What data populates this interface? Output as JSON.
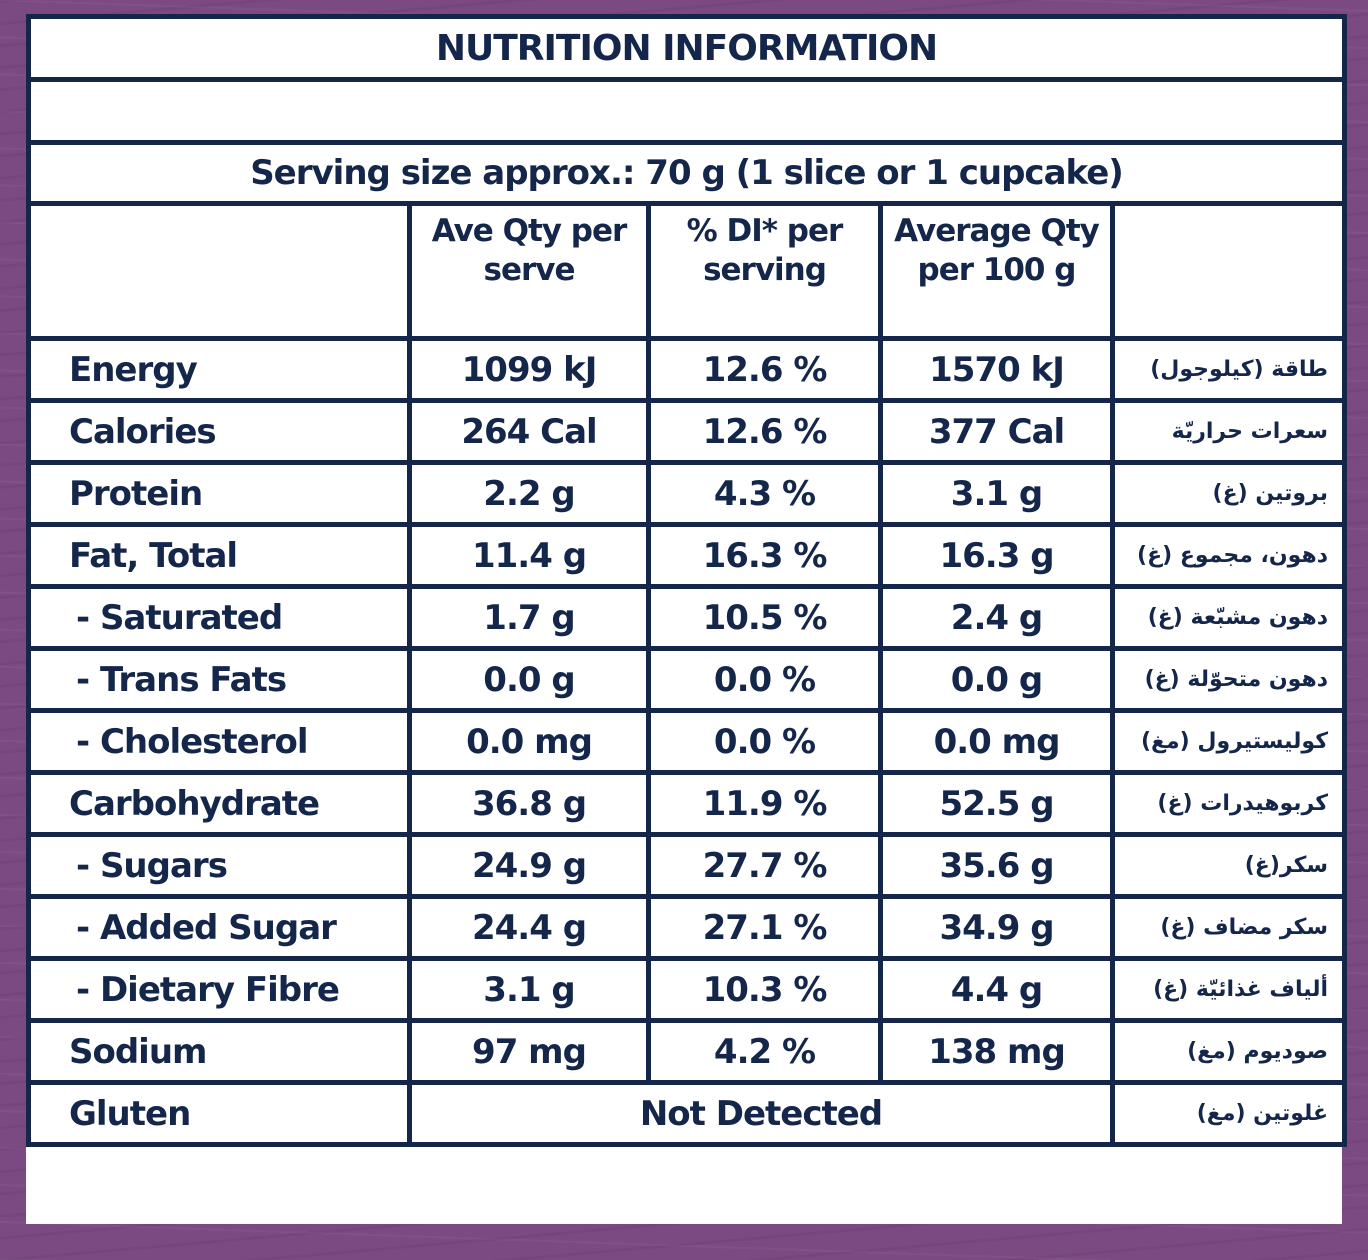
{
  "title": "NUTRITION INFORMATION",
  "serving": "Serving size approx.: 70 g (1 slice or 1 cupcake)",
  "headers": [
    "",
    "Ave Qty per serve",
    "% DI* per serving",
    "Average Qty per 100 g",
    ""
  ],
  "rows": [
    {
      "name": "Energy",
      "serve": "1099 kJ",
      "di": "12.6 %",
      "per100": "1570 kJ",
      "arabic": "طاقة (كيلوجول)",
      "sub": false
    },
    {
      "name": "Calories",
      "serve": "264 Cal",
      "di": "12.6 %",
      "per100": "377 Cal",
      "arabic": "سعرات حراريّة",
      "sub": false
    },
    {
      "name": "Protein",
      "serve": "2.2 g",
      "di": "4.3 %",
      "per100": "3.1 g",
      "arabic": "بروتين (غ)",
      "sub": false
    },
    {
      "name": "Fat, Total",
      "serve": "11.4 g",
      "di": "16.3 %",
      "per100": "16.3 g",
      "arabic": "دهون، مجموع (غ)",
      "sub": false
    },
    {
      "name": " - Saturated",
      "serve": "1.7 g",
      "di": "10.5 %",
      "per100": "2.4 g",
      "arabic": "دهون مشبّعة (غ)",
      "sub": true
    },
    {
      "name": " - Trans Fats",
      "serve": "0.0 g",
      "di": "0.0 %",
      "per100": "0.0 g",
      "arabic": "دهون متحوّلة (غ)",
      "sub": true
    },
    {
      "name": " - Cholesterol",
      "serve": "0.0 mg",
      "di": "0.0 %",
      "per100": "0.0 mg",
      "arabic": "كوليستيرول (مغ)",
      "sub": true
    },
    {
      "name": "Carbohydrate",
      "serve": "36.8 g",
      "di": "11.9 %",
      "per100": "52.5 g",
      "arabic": "كربوهيدرات (غ)",
      "sub": false
    },
    {
      "name": " - Sugars",
      "serve": "24.9 g",
      "di": "27.7 %",
      "per100": "35.6 g",
      "arabic": "سكر(غ)",
      "sub": true
    },
    {
      "name": " - Added Sugar",
      "serve": "24.4 g",
      "di": "27.1 %",
      "per100": "34.9 g",
      "arabic": "سكر مضاف (غ)",
      "sub": true
    },
    {
      "name": "- Dietary Fibre",
      "serve": "3.1 g",
      "di": "10.3 %",
      "per100": "4.4 g",
      "arabic": "ألياف غذائيّة (غ)",
      "sub": true
    },
    {
      "name": "Sodium",
      "serve": "97 mg",
      "di": "4.2 %",
      "per100": "138 mg",
      "arabic": "صوديوم (مغ)",
      "sub": false
    }
  ],
  "gluten": {
    "name": "Gluten",
    "value": "Not Detected",
    "arabic": "غلوتين (مغ)"
  },
  "colors": {
    "border": "#14274a",
    "text": "#14274a",
    "background": "#7b4a82"
  }
}
